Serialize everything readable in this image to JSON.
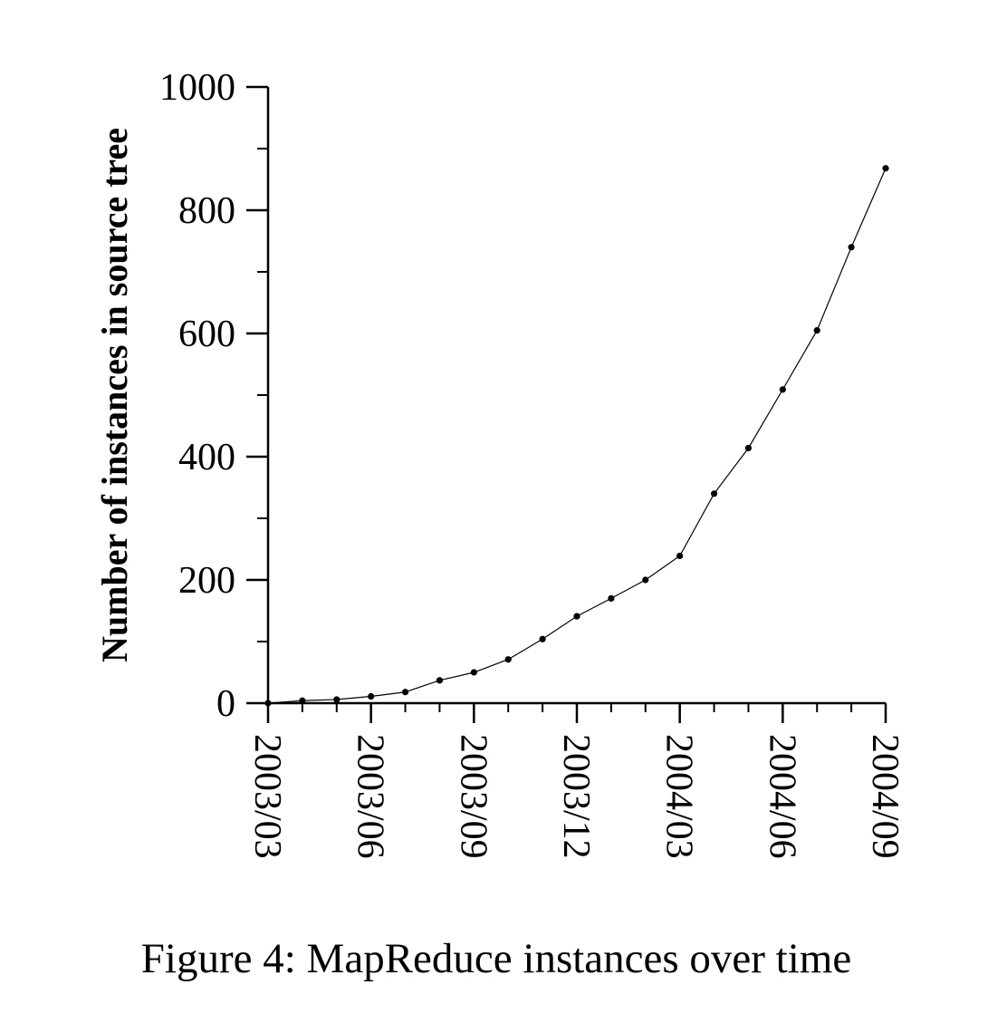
{
  "caption": "Figure 4: MapReduce instances over time",
  "chart_data": {
    "type": "line",
    "title": "",
    "xlabel": "",
    "ylabel": "Number of instances in source tree",
    "ylim": [
      0,
      1000
    ],
    "y_ticks": [
      0,
      200,
      400,
      600,
      800,
      1000
    ],
    "y_minor_step": 100,
    "x_ticks": [
      "2003/03",
      "2003/06",
      "2003/09",
      "2003/12",
      "2004/03",
      "2004/06",
      "2004/09"
    ],
    "grid": false,
    "legend": "none",
    "series": [
      {
        "x": [
          "2003/03",
          "2003/04",
          "2003/05",
          "2003/06",
          "2003/07",
          "2003/08",
          "2003/09",
          "2003/10",
          "2003/11",
          "2003/12",
          "2004/01",
          "2004/02",
          "2004/03",
          "2004/04",
          "2004/05",
          "2004/06",
          "2004/07",
          "2004/08",
          "2004/09"
        ],
        "values": [
          0,
          4,
          6,
          11,
          18,
          37,
          50,
          71,
          104,
          141,
          170,
          200,
          239,
          340,
          414,
          509,
          605,
          740,
          868
        ],
        "marker": "dot",
        "color": "#000000"
      }
    ]
  }
}
